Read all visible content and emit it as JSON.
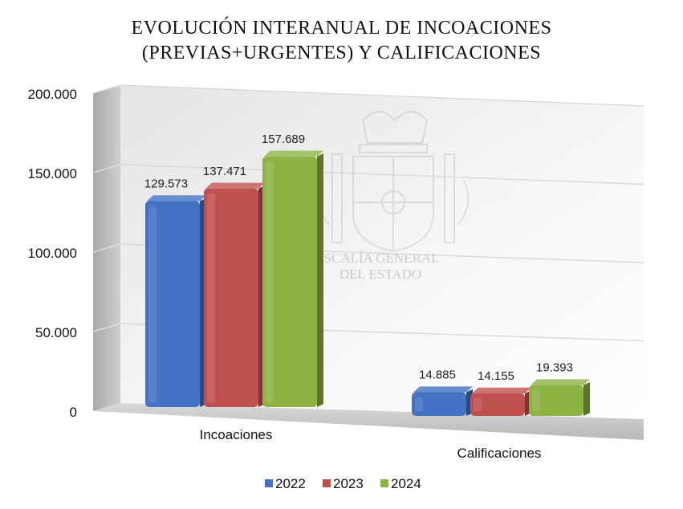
{
  "chart_data": {
    "type": "bar",
    "title_line1": "EVOLUCIÓN INTERANUAL DE INCOACIONES",
    "title_line2": "(PREVIAS+URGENTES) Y CALIFICACIONES",
    "categories": [
      "Incoaciones",
      "Calificaciones"
    ],
    "series": [
      {
        "name": "2022",
        "values": [
          129573,
          14885
        ],
        "labels": [
          "129.573",
          "14.885"
        ],
        "color": "#4472C4"
      },
      {
        "name": "2023",
        "values": [
          137471,
          14155
        ],
        "labels": [
          "137.471",
          "14.155"
        ],
        "color": "#C0504D"
      },
      {
        "name": "2024",
        "values": [
          157689,
          19393
        ],
        "labels": [
          "157.689",
          "19.393"
        ],
        "color": "#8DB342"
      }
    ],
    "yticks": [
      0,
      50000,
      100000,
      150000,
      200000
    ],
    "ytick_labels": [
      "0",
      "50.000",
      "100.000",
      "150.000",
      "200.000"
    ],
    "ylim": [
      0,
      200000
    ],
    "grid": true,
    "legend_position": "bottom",
    "watermark_text": [
      "FISCALÍA GENERAL",
      "DEL ESTADO"
    ]
  }
}
